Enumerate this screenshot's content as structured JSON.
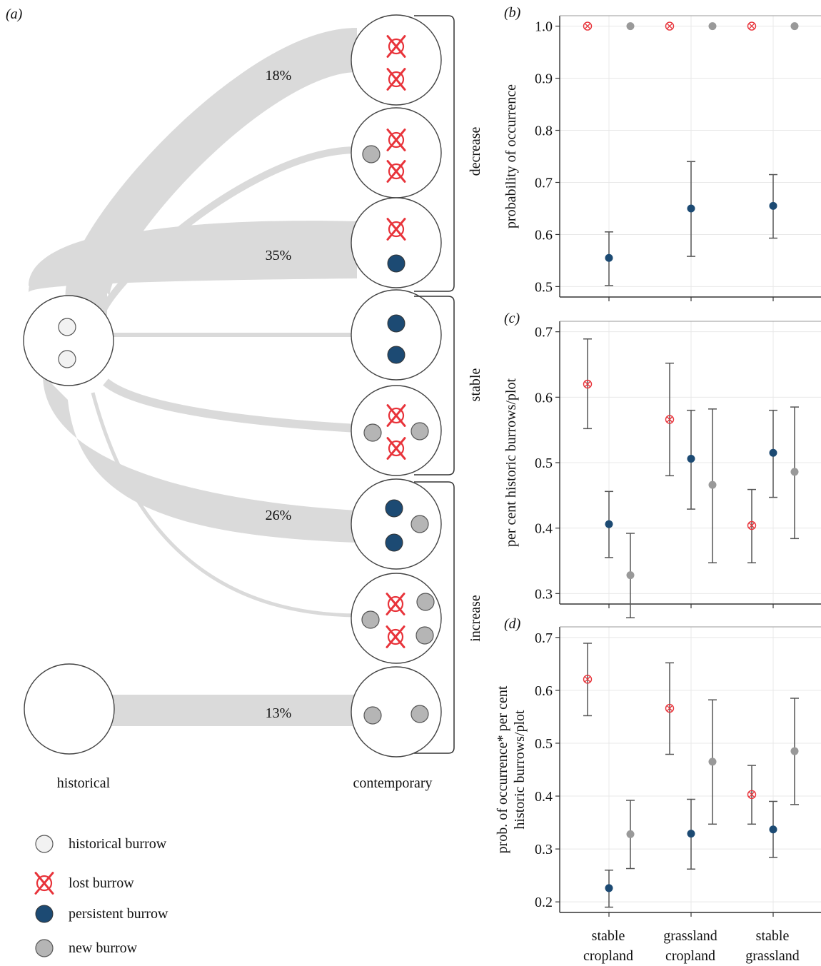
{
  "colors": {
    "lost": "#e8333a",
    "persistent": "#1c4a73",
    "new": "#b5b5b5",
    "historical": "#f2f2f2",
    "flow": "#dadada",
    "grid": "#e8e8e8",
    "error": "#555555"
  },
  "panel_a": {
    "label": "(a)",
    "flows": [
      {
        "target": 0,
        "percent": "18%"
      },
      {
        "target": 1,
        "percent": ""
      },
      {
        "target": 2,
        "percent": "35%"
      },
      {
        "target": 3,
        "percent": ""
      },
      {
        "target": 4,
        "percent": ""
      },
      {
        "target": 5,
        "percent": "26%"
      },
      {
        "target": 6,
        "percent": ""
      },
      {
        "target": 7,
        "percent": "13%"
      }
    ],
    "groups": [
      "decrease",
      "stable",
      "increase"
    ],
    "columns": {
      "left": "historical",
      "right": "contemporary"
    },
    "legend": [
      {
        "icon": "historical",
        "label": "historical burrow"
      },
      {
        "icon": "lost",
        "label": "lost burrow"
      },
      {
        "icon": "persistent",
        "label": "persistent burrow"
      },
      {
        "icon": "new",
        "label": "new burrow"
      }
    ]
  },
  "chart_data": [
    {
      "panel": "(b)",
      "type": "scatter",
      "ylabel": "probability of occurrence",
      "ylim": [
        0.5,
        1.0
      ],
      "yticks": [
        "0.5",
        "0.6",
        "0.7",
        "0.8",
        "0.9",
        "1.0"
      ],
      "categories": [
        "stable cropland",
        "grassland cropland",
        "stable grassland"
      ],
      "series": [
        {
          "kind": "lost",
          "values": [
            1.0,
            1.0,
            1.0
          ],
          "lower": [
            null,
            null,
            null
          ],
          "upper": [
            null,
            null,
            null
          ]
        },
        {
          "kind": "persistent",
          "values": [
            0.555,
            0.65,
            0.655
          ],
          "lower": [
            0.502,
            0.558,
            0.593
          ],
          "upper": [
            0.605,
            0.74,
            0.715
          ]
        },
        {
          "kind": "new",
          "values": [
            1.0,
            1.0,
            1.0
          ],
          "lower": [
            null,
            null,
            null
          ],
          "upper": [
            null,
            null,
            null
          ]
        }
      ]
    },
    {
      "panel": "(c)",
      "type": "scatter",
      "ylabel": "per cent historic burrows/plot",
      "ylim": [
        0.3,
        0.7
      ],
      "yticks": [
        "0.3",
        "0.4",
        "0.5",
        "0.6",
        "0.7"
      ],
      "categories": [
        "stable cropland",
        "grassland cropland",
        "stable grassland"
      ],
      "series": [
        {
          "kind": "lost",
          "values": [
            0.62,
            0.566,
            0.404
          ],
          "lower": [
            0.552,
            0.48,
            0.347
          ],
          "upper": [
            0.689,
            0.652,
            0.459
          ]
        },
        {
          "kind": "persistent",
          "values": [
            0.406,
            0.506,
            0.515
          ],
          "lower": [
            0.355,
            0.429,
            0.447
          ],
          "upper": [
            0.456,
            0.58,
            0.58
          ]
        },
        {
          "kind": "new",
          "values": [
            0.328,
            0.466,
            0.486
          ],
          "lower": [
            0.263,
            0.347,
            0.384
          ],
          "upper": [
            0.392,
            0.582,
            0.585
          ]
        }
      ]
    },
    {
      "panel": "(d)",
      "type": "scatter",
      "ylabel": "prob. of occurrence* per cent historic burrows/plot",
      "ylabel_lines": [
        "prob. of occurrence* per cent",
        "historic burrows/plot"
      ],
      "ylim": [
        0.2,
        0.7
      ],
      "yticks": [
        "0.2",
        "0.3",
        "0.4",
        "0.5",
        "0.6",
        "0.7"
      ],
      "categories": [
        "stable cropland",
        "grassland cropland",
        "stable grassland"
      ],
      "series": [
        {
          "kind": "lost",
          "values": [
            0.621,
            0.566,
            0.403
          ],
          "lower": [
            0.552,
            0.479,
            0.347
          ],
          "upper": [
            0.689,
            0.652,
            0.458
          ]
        },
        {
          "kind": "persistent",
          "values": [
            0.226,
            0.329,
            0.337
          ],
          "lower": [
            0.19,
            0.262,
            0.284
          ],
          "upper": [
            0.26,
            0.394,
            0.39
          ]
        },
        {
          "kind": "new",
          "values": [
            0.328,
            0.465,
            0.485
          ],
          "lower": [
            0.263,
            0.347,
            0.384
          ],
          "upper": [
            0.392,
            0.582,
            0.585
          ]
        }
      ]
    }
  ],
  "x_tick_labels": [
    [
      "stable",
      "cropland"
    ],
    [
      "grassland",
      "cropland"
    ],
    [
      "stable",
      "grassland"
    ]
  ]
}
